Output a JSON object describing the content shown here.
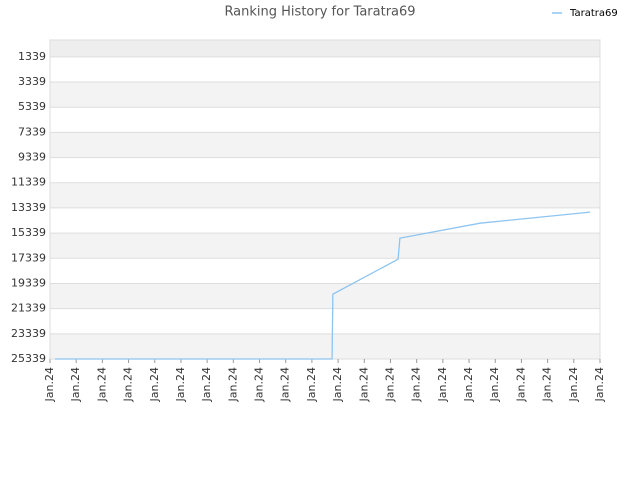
{
  "chart_data": {
    "type": "line",
    "title": "Ranking History for Taratra69",
    "series": [
      {
        "name": "Taratra69",
        "color": "#8ec4f0",
        "x": [
          0.19,
          10.77,
          10.8,
          13.29,
          13.36,
          16.42,
          20.62
        ],
        "values": [
          25339,
          25339,
          20190,
          17410,
          15740,
          14550,
          13670
        ]
      }
    ],
    "xlim": [
      0,
      21
    ],
    "xticks": [
      {
        "value": 0,
        "label": "Jan.24"
      },
      {
        "value": 1,
        "label": "Jan.24"
      },
      {
        "value": 2,
        "label": "Jan.24"
      },
      {
        "value": 3,
        "label": "Jan.24"
      },
      {
        "value": 4,
        "label": "Jan.24"
      },
      {
        "value": 5,
        "label": "Jan.24"
      },
      {
        "value": 6,
        "label": "Jan.24"
      },
      {
        "value": 7,
        "label": "Jan.24"
      },
      {
        "value": 8,
        "label": "Jan.24"
      },
      {
        "value": 9,
        "label": "Jan.24"
      },
      {
        "value": 10,
        "label": "Jan.24"
      },
      {
        "value": 11,
        "label": "Jan.24"
      },
      {
        "value": 12,
        "label": "Jan.24"
      },
      {
        "value": 13,
        "label": "Jan.24"
      },
      {
        "value": 14,
        "label": "Jan.24"
      },
      {
        "value": 15,
        "label": "Jan.24"
      },
      {
        "value": 16,
        "label": "Jan.24"
      },
      {
        "value": 17,
        "label": "Jan.24"
      },
      {
        "value": 18,
        "label": "Jan.24"
      },
      {
        "value": 19,
        "label": "Jan.24"
      },
      {
        "value": 20,
        "label": "Jan.24"
      },
      {
        "value": 21,
        "label": "Jan.24"
      }
    ],
    "ylim": [
      25339,
      0
    ],
    "yticks": [
      1339,
      3339,
      5339,
      7339,
      9339,
      11339,
      13339,
      15339,
      17339,
      19339,
      21339,
      23339,
      25339
    ],
    "grid": true
  }
}
